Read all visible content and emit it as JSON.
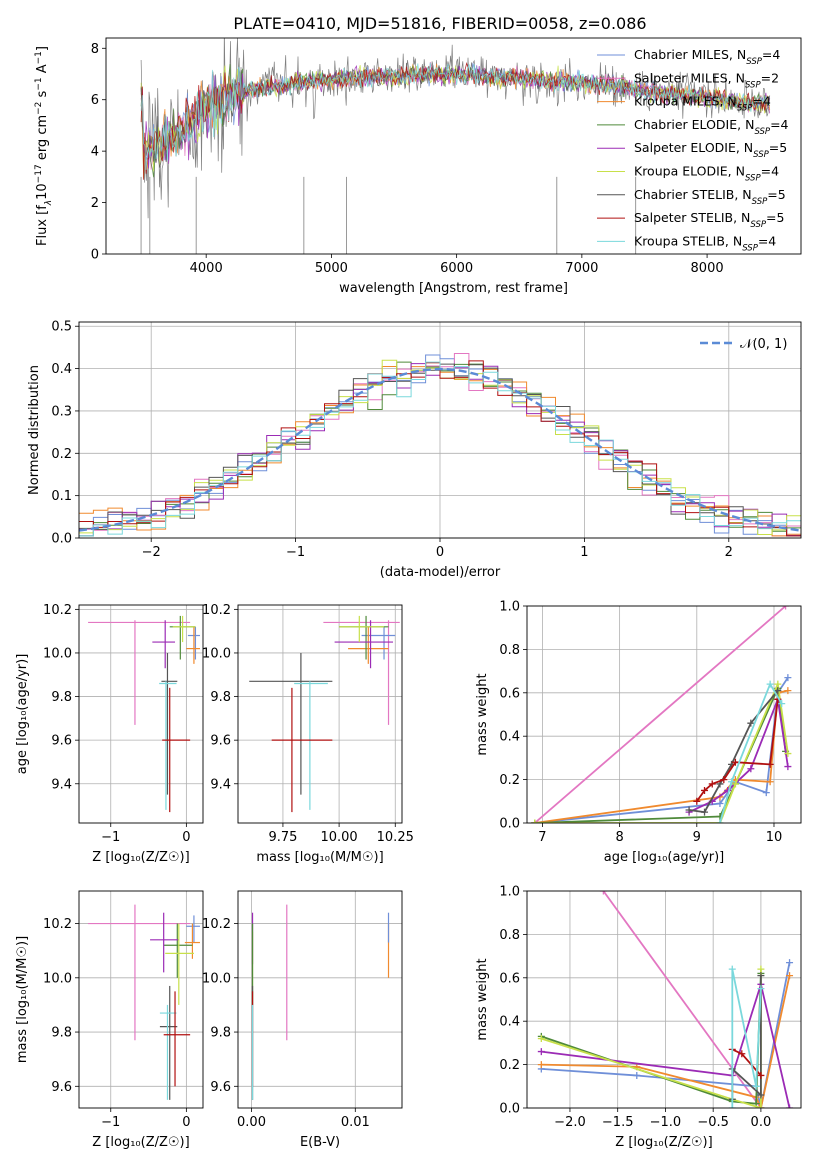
{
  "title": "PLATE=0410, MJD=51816, FIBERID=0058, z=0.086",
  "colors": {
    "grid": "#b0b0b0",
    "normal_curve": "#5b8bd6",
    "series": {
      "Chabrier MILES": "#6f8fd8",
      "Salpeter MILES": "#e377c2",
      "Kroupa MILES": "#f08a2e",
      "Chabrier ELODIE": "#4f8a3a",
      "Salpeter ELODIE": "#9b2bb5",
      "Kroupa ELODIE": "#c8e04a",
      "Chabrier STELIB": "#555555",
      "Salpeter STELIB": "#b01010",
      "Kroupa STELIB": "#7ad8dc"
    }
  },
  "chart_data": [
    {
      "type": "line",
      "id": "spectrum",
      "xlabel": "wavelength [Angstrom, rest frame]",
      "ylabel_parts": [
        "Flux [f",
        "λ",
        "10",
        "−17",
        " erg cm",
        "−2",
        " s",
        "−1",
        " A",
        "−1",
        "]"
      ],
      "xlim": [
        3200,
        8750
      ],
      "ylim": [
        0,
        8.4
      ],
      "xticks": [
        4000,
        5000,
        6000,
        7000,
        8000
      ],
      "yticks": [
        0,
        2,
        4,
        6,
        8
      ],
      "grid": false,
      "legend_position": "right",
      "legend": [
        {
          "label": "Chabrier MILES",
          "nssp": "4"
        },
        {
          "label": "Salpeter MILES",
          "nssp": "2"
        },
        {
          "label": "Kroupa MILES",
          "nssp": "4"
        },
        {
          "label": "Chabrier ELODIE",
          "nssp": "4"
        },
        {
          "label": "Salpeter ELODIE",
          "nssp": "5"
        },
        {
          "label": "Kroupa ELODIE",
          "nssp": "4"
        },
        {
          "label": "Chabrier STELIB",
          "nssp": "5"
        },
        {
          "label": "Salpeter STELIB",
          "nssp": "5"
        },
        {
          "label": "Kroupa STELIB",
          "nssp": "4"
        }
      ],
      "nssp_prefix": "N",
      "nssp_subscript": "SSP",
      "continuum": {
        "x": [
          3500,
          3700,
          3800,
          3900,
          4000,
          4100,
          4300,
          4500,
          4800,
          5000,
          5200,
          5500,
          5800,
          6000,
          6300,
          6600,
          6800,
          7000,
          7300,
          7600,
          8000,
          8300,
          8500
        ],
        "y": [
          3.9,
          4.5,
          4.9,
          5.2,
          5.7,
          6.0,
          6.3,
          6.5,
          6.7,
          6.8,
          6.9,
          6.9,
          7.0,
          7.0,
          6.9,
          6.8,
          6.7,
          6.7,
          6.5,
          6.3,
          6.1,
          5.9,
          5.8
        ]
      }
    },
    {
      "type": "histogram",
      "id": "residuals",
      "xlabel": "(data-model)/error",
      "ylabel": "Normed distribution",
      "xlim": [
        -2.5,
        2.5
      ],
      "ylim": [
        0,
        0.51
      ],
      "xticks": [
        -2,
        -1,
        0,
        1,
        2
      ],
      "yticks": [
        0.0,
        0.1,
        0.2,
        0.3,
        0.4,
        0.5
      ],
      "grid": true,
      "legend_position": "top-right",
      "normal_label": "𝒩(0, 1)",
      "bin_width": 0.1,
      "n_series": 9
    },
    {
      "type": "scatter",
      "id": "age-vs-Z",
      "xlabel": "Z [log₁₀(Z/Z☉)]",
      "ylabel": "age  [log₁₀(age/yr)]",
      "xlim": [
        -1.42,
        0.22
      ],
      "ylim": [
        9.22,
        10.22
      ],
      "xticks": [
        -1,
        0
      ],
      "yticks": [
        9.4,
        9.6,
        9.8,
        10.0,
        10.2
      ],
      "grid": true,
      "points": [
        {
          "s": "Salpeter MILES",
          "x": -0.68,
          "xe": [
            -1.3,
            0.05
          ],
          "y": 10.14,
          "ye": [
            9.67,
            10.15
          ]
        },
        {
          "s": "Chabrier MILES",
          "x": 0.12,
          "xe": [
            0.02,
            0.18
          ],
          "y": 10.08,
          "ye": [
            9.97,
            10.12
          ]
        },
        {
          "s": "Kroupa MILES",
          "x": 0.1,
          "xe": [
            0.0,
            0.18
          ],
          "y": 10.02,
          "ye": [
            9.95,
            10.12
          ]
        },
        {
          "s": "Chabrier ELODIE",
          "x": -0.08,
          "xe": [
            -0.22,
            0.12
          ],
          "y": 10.12,
          "ye": [
            9.97,
            10.17
          ]
        },
        {
          "s": "Salpeter ELODIE",
          "x": -0.28,
          "xe": [
            -0.45,
            -0.15
          ],
          "y": 10.05,
          "ye": [
            9.93,
            10.15
          ]
        },
        {
          "s": "Kroupa ELODIE",
          "x": -0.05,
          "xe": [
            -0.18,
            0.12
          ],
          "y": 10.12,
          "ye": [
            10.05,
            10.17
          ]
        },
        {
          "s": "Chabrier STELIB",
          "x": -0.25,
          "xe": [
            -0.33,
            -0.12
          ],
          "y": 9.87,
          "ye": [
            9.35,
            10.0
          ]
        },
        {
          "s": "Kroupa STELIB",
          "x": -0.27,
          "xe": [
            -0.36,
            -0.13
          ],
          "y": 9.86,
          "ye": [
            9.28,
            9.87
          ]
        },
        {
          "s": "Salpeter STELIB",
          "x": -0.22,
          "xe": [
            -0.32,
            0.05
          ],
          "y": 9.6,
          "ye": [
            9.27,
            9.84
          ]
        }
      ]
    },
    {
      "type": "scatter",
      "id": "age-vs-mass",
      "xlabel": "mass [log₁₀(M/M☉)]",
      "ylabel": "",
      "xlim": [
        9.55,
        10.28
      ],
      "ylim": [
        9.22,
        10.22
      ],
      "xticks": [
        9.75,
        10.0,
        10.25
      ],
      "xtick_labels": [
        "9.75",
        "10.00",
        "10.25"
      ],
      "yticks": [
        9.4,
        9.6,
        9.8,
        10.0,
        10.2
      ],
      "grid": true,
      "points": [
        {
          "s": "Salpeter MILES",
          "x": 10.22,
          "xe": [
            9.93,
            10.27
          ],
          "y": 10.14,
          "ye": [
            9.67,
            10.15
          ]
        },
        {
          "s": "Chabrier MILES",
          "x": 10.2,
          "xe": [
            10.1,
            10.25
          ],
          "y": 10.08,
          "ye": [
            9.97,
            10.12
          ]
        },
        {
          "s": "Kroupa MILES",
          "x": 10.13,
          "xe": [
            10.04,
            10.22
          ],
          "y": 10.02,
          "ye": [
            9.95,
            10.12
          ]
        },
        {
          "s": "Chabrier ELODIE",
          "x": 10.12,
          "xe": [
            10.0,
            10.22
          ],
          "y": 10.12,
          "ye": [
            9.97,
            10.17
          ]
        },
        {
          "s": "Salpeter ELODIE",
          "x": 10.14,
          "xe": [
            9.98,
            10.24
          ],
          "y": 10.05,
          "ye": [
            9.93,
            10.15
          ]
        },
        {
          "s": "Kroupa ELODIE",
          "x": 10.09,
          "xe": [
            10.0,
            10.2
          ],
          "y": 10.12,
          "ye": [
            10.05,
            10.17
          ]
        },
        {
          "s": "Chabrier STELIB",
          "x": 9.83,
          "xe": [
            9.6,
            9.97
          ],
          "y": 9.87,
          "ye": [
            9.35,
            10.0
          ]
        },
        {
          "s": "Kroupa STELIB",
          "x": 9.87,
          "xe": [
            9.8,
            9.95
          ],
          "y": 9.86,
          "ye": [
            9.28,
            9.87
          ]
        },
        {
          "s": "Salpeter STELIB",
          "x": 9.79,
          "xe": [
            9.7,
            9.97
          ],
          "y": 9.6,
          "ye": [
            9.27,
            9.84
          ]
        }
      ]
    },
    {
      "type": "line",
      "id": "weight-vs-age",
      "xlabel": "age  [log₁₀(age/yr)]",
      "ylabel": "mass weight",
      "xlim": [
        6.8,
        10.35
      ],
      "ylim": [
        0,
        1.0
      ],
      "xticks": [
        7,
        8,
        9,
        10
      ],
      "yticks": [
        0.0,
        0.2,
        0.4,
        0.6,
        0.8,
        1.0
      ],
      "grid": true,
      "series": [
        {
          "s": "Salpeter MILES",
          "x": [
            6.9,
            10.15
          ],
          "y": [
            0.0,
            1.0
          ]
        },
        {
          "s": "Chabrier MILES",
          "x": [
            6.9,
            9.3,
            9.5,
            9.9,
            10.05,
            10.18
          ],
          "y": [
            0.0,
            0.09,
            0.19,
            0.14,
            0.6,
            0.67
          ]
        },
        {
          "s": "Kroupa MILES",
          "x": [
            6.9,
            9.3,
            9.5,
            9.95,
            10.05,
            10.18
          ],
          "y": [
            0.0,
            0.12,
            0.2,
            0.19,
            0.6,
            0.61
          ]
        },
        {
          "s": "Chabrier ELODIE",
          "x": [
            6.9,
            9.3,
            9.5,
            10.05,
            10.15
          ],
          "y": [
            0.0,
            0.03,
            0.18,
            0.62,
            0.33
          ]
        },
        {
          "s": "Salpeter ELODIE",
          "x": [
            8.9,
            9.2,
            9.4,
            9.7,
            10.05,
            10.18
          ],
          "y": [
            0.05,
            0.1,
            0.15,
            0.25,
            0.57,
            0.26
          ]
        },
        {
          "s": "Kroupa ELODIE",
          "x": [
            6.9,
            9.3,
            9.5,
            10.05,
            10.18
          ],
          "y": [
            0.0,
            0.0,
            0.18,
            0.64,
            0.32
          ]
        },
        {
          "s": "Chabrier STELIB",
          "x": [
            8.9,
            9.1,
            9.3,
            9.45,
            9.7,
            10.05
          ],
          "y": [
            0.06,
            0.05,
            0.18,
            0.27,
            0.46,
            0.61
          ]
        },
        {
          "s": "Salpeter STELIB",
          "x": [
            9.0,
            9.1,
            9.2,
            9.35,
            9.5,
            9.95,
            10.05
          ],
          "y": [
            0.1,
            0.15,
            0.18,
            0.2,
            0.28,
            0.27,
            0.57
          ]
        },
        {
          "s": "Kroupa STELIB",
          "x": [
            9.3,
            9.45,
            9.95,
            10.1
          ],
          "y": [
            0.0,
            0.19,
            0.64,
            0.55
          ]
        }
      ]
    },
    {
      "type": "scatter",
      "id": "mass-vs-Z",
      "xlabel": "Z [log₁₀(Z/Z☉)]",
      "ylabel": "mass [log₁₀(M/M☉)]",
      "xlim": [
        -1.42,
        0.22
      ],
      "ylim": [
        9.52,
        10.32
      ],
      "xticks": [
        -1,
        0
      ],
      "yticks": [
        9.6,
        9.8,
        10.0,
        10.2
      ],
      "grid": true,
      "points": [
        {
          "s": "Salpeter MILES",
          "x": -0.68,
          "xe": [
            -1.3,
            0.05
          ],
          "y": 10.2,
          "ye": [
            9.77,
            10.27
          ]
        },
        {
          "s": "Chabrier MILES",
          "x": 0.1,
          "xe": [
            0.0,
            0.18
          ],
          "y": 10.19,
          "ye": [
            10.13,
            10.23
          ]
        },
        {
          "s": "Kroupa MILES",
          "x": 0.08,
          "xe": [
            -0.02,
            0.18
          ],
          "y": 10.13,
          "ye": [
            10.07,
            10.2
          ]
        },
        {
          "s": "Chabrier ELODIE",
          "x": -0.12,
          "xe": [
            -0.3,
            0.08
          ],
          "y": 10.12,
          "ye": [
            10.0,
            10.2
          ]
        },
        {
          "s": "Salpeter ELODIE",
          "x": -0.3,
          "xe": [
            -0.48,
            -0.1
          ],
          "y": 10.14,
          "ye": [
            10.02,
            10.24
          ]
        },
        {
          "s": "Kroupa ELODIE",
          "x": -0.1,
          "xe": [
            -0.28,
            0.1
          ],
          "y": 10.09,
          "ye": [
            9.9,
            10.2
          ]
        },
        {
          "s": "Chabrier STELIB",
          "x": -0.22,
          "xe": [
            -0.35,
            -0.12
          ],
          "y": 9.82,
          "ye": [
            9.55,
            9.97
          ]
        },
        {
          "s": "Kroupa STELIB",
          "x": -0.25,
          "xe": [
            -0.35,
            -0.13
          ],
          "y": 9.87,
          "ye": [
            9.55,
            9.9
          ]
        },
        {
          "s": "Salpeter STELIB",
          "x": -0.15,
          "xe": [
            -0.3,
            0.05
          ],
          "y": 9.79,
          "ye": [
            9.6,
            9.95
          ]
        }
      ]
    },
    {
      "type": "scatter",
      "id": "mass-vs-ebv",
      "xlabel": "E(B-V)",
      "ylabel": "",
      "xlim": [
        -0.0013,
        0.0145
      ],
      "ylim": [
        9.52,
        10.32
      ],
      "xticks": [
        0.0,
        0.01
      ],
      "xtick_labels": [
        "0.00",
        "0.01"
      ],
      "yticks": [
        9.6,
        9.8,
        10.0,
        10.2
      ],
      "grid": true,
      "points": [
        {
          "s": "Salpeter MILES",
          "x": 0.0034,
          "y": 10.2,
          "ye": [
            9.77,
            10.27
          ]
        },
        {
          "s": "Kroupa MILES",
          "x": 0.0132,
          "y": 10.13,
          "ye": [
            10.0,
            10.2
          ]
        },
        {
          "s": "Chabrier MILES",
          "x": 0.0132,
          "y": 10.19,
          "ye": [
            10.13,
            10.24
          ]
        },
        {
          "s": "Salpeter ELODIE",
          "x": 0.0001,
          "y": 10.14,
          "ye": [
            10.05,
            10.24
          ]
        },
        {
          "s": "Kroupa ELODIE",
          "x": 0.0001,
          "y": 10.09,
          "ye": [
            9.9,
            10.17
          ]
        },
        {
          "s": "Chabrier ELODIE",
          "x": 0.0001,
          "y": 10.12,
          "ye": [
            9.9,
            10.2
          ]
        },
        {
          "s": "Chabrier STELIB",
          "x": 0.0001,
          "y": 9.82,
          "ye": [
            9.55,
            9.97
          ]
        },
        {
          "s": "Salpeter STELIB",
          "x": 0.0001,
          "y": 9.79,
          "ye": [
            9.6,
            9.95
          ]
        },
        {
          "s": "Kroupa STELIB",
          "x": 0.0001,
          "y": 9.87,
          "ye": [
            9.55,
            9.9
          ]
        }
      ]
    },
    {
      "type": "line",
      "id": "weight-vs-Z",
      "xlabel": "Z [log₁₀(Z/Z☉)]",
      "ylabel": "mass weight",
      "xlim": [
        -2.45,
        0.42
      ],
      "ylim": [
        0,
        1.0
      ],
      "xticks": [
        -2.0,
        -1.5,
        -1.0,
        -0.5,
        0.0
      ],
      "xtick_labels": [
        "−2.0",
        "−1.5",
        "−1.0",
        "−0.5",
        "0.0"
      ],
      "yticks": [
        0.0,
        0.2,
        0.4,
        0.6,
        0.8,
        1.0
      ],
      "grid": true,
      "series": [
        {
          "s": "Salpeter MILES",
          "x": [
            -1.65,
            0.0
          ],
          "y": [
            1.0,
            0.0
          ]
        },
        {
          "s": "Chabrier MILES",
          "x": [
            -2.3,
            -1.3,
            -0.05,
            0.0,
            0.3
          ],
          "y": [
            0.18,
            0.15,
            0.1,
            0.0,
            0.67
          ]
        },
        {
          "s": "Kroupa MILES",
          "x": [
            -2.3,
            -1.3,
            -0.05,
            0.0,
            0.3
          ],
          "y": [
            0.2,
            0.19,
            0.05,
            0.0,
            0.61
          ]
        },
        {
          "s": "Chabrier ELODIE",
          "x": [
            -2.3,
            -0.3,
            -0.05,
            0.0
          ],
          "y": [
            0.33,
            0.03,
            0.02,
            0.62
          ]
        },
        {
          "s": "Salpeter ELODIE",
          "x": [
            -2.3,
            -0.3,
            0.0,
            0.3
          ],
          "y": [
            0.26,
            0.15,
            0.57,
            0.0
          ]
        },
        {
          "s": "Kroupa ELODIE",
          "x": [
            -2.3,
            -0.3,
            0.0,
            0.0
          ],
          "y": [
            0.32,
            0.04,
            0.0,
            0.64
          ]
        },
        {
          "s": "Chabrier STELIB",
          "x": [
            -0.3,
            -0.3,
            0.0,
            0.0
          ],
          "y": [
            0.04,
            0.18,
            0.06,
            0.61
          ]
        },
        {
          "s": "Salpeter STELIB",
          "x": [
            -0.3,
            -0.2,
            0.0
          ],
          "y": [
            0.27,
            0.25,
            0.15
          ]
        },
        {
          "s": "Kroupa STELIB",
          "x": [
            -0.3,
            -0.3,
            -0.05,
            0.0
          ],
          "y": [
            0.0,
            0.64,
            0.1,
            0.55
          ]
        }
      ]
    }
  ]
}
